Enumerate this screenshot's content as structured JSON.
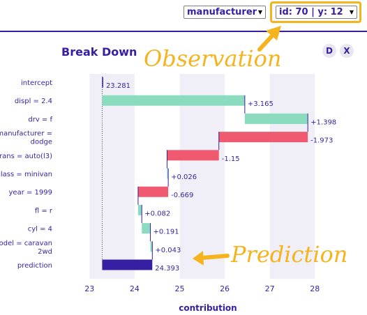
{
  "toolbar": {
    "variable_select": "manufacturer",
    "observation_select": "id: 70 | y: 12",
    "dropdown_glyph": "▼"
  },
  "panel": {
    "title": "Break Down",
    "button_d": "D",
    "button_x": "X"
  },
  "annotations": {
    "observation": "Observation",
    "prediction": "Prediction"
  },
  "colors": {
    "accent": "#371ea3",
    "positive": "#8bdcbe",
    "negative": "#f05a71",
    "prediction": "#371ea3",
    "callout": "#f5b41e",
    "grid": "#f0eff7"
  },
  "chart_data": {
    "type": "bar",
    "title": "Break Down",
    "xlabel": "contribution",
    "ylabel": "",
    "xlim": [
      22.5,
      28.6
    ],
    "xticks": [
      "23",
      "24",
      "25",
      "26",
      "27",
      "28"
    ],
    "intercept_value": 23.281,
    "rows": [
      {
        "label": [
          "intercept"
        ],
        "value": 23.281,
        "value_label": "23.281",
        "kind": "intercept"
      },
      {
        "label": [
          "displ = 2.4"
        ],
        "value": 3.165,
        "value_label": "+3.165",
        "kind": "positive"
      },
      {
        "label": [
          "drv = f"
        ],
        "value": 1.398,
        "value_label": "+1.398",
        "kind": "positive"
      },
      {
        "label": [
          "manufacturer =",
          "dodge"
        ],
        "value": -1.973,
        "value_label": "-1.973",
        "kind": "negative"
      },
      {
        "label": [
          "trans = auto(l3)"
        ],
        "value": -1.15,
        "value_label": "-1.15",
        "kind": "negative"
      },
      {
        "label": [
          "class = minivan"
        ],
        "value": 0.026,
        "value_label": "+0.026",
        "kind": "positive"
      },
      {
        "label": [
          "year = 1999"
        ],
        "value": -0.669,
        "value_label": "-0.669",
        "kind": "negative"
      },
      {
        "label": [
          "fl = r"
        ],
        "value": 0.082,
        "value_label": "+0.082",
        "kind": "positive"
      },
      {
        "label": [
          "cyl = 4"
        ],
        "value": 0.191,
        "value_label": "+0.191",
        "kind": "positive"
      },
      {
        "label": [
          "model = caravan",
          "2wd"
        ],
        "value": 0.043,
        "value_label": "+0.043",
        "kind": "positive"
      },
      {
        "label": [
          "prediction"
        ],
        "value": 24.393,
        "value_label": "24.393",
        "kind": "prediction"
      }
    ]
  }
}
